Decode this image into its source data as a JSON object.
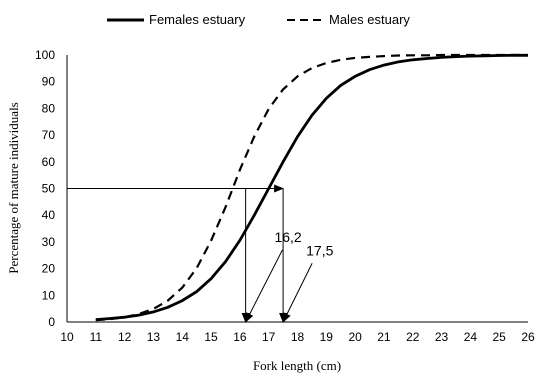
{
  "chart_data": {
    "type": "line",
    "xlabel": "Fork length  (cm)",
    "ylabel": "Percentage of mature individuals",
    "xlim": [
      10,
      26
    ],
    "ylim": [
      0,
      100
    ],
    "xticks": [
      "10",
      "11",
      "12",
      "13",
      "14",
      "15",
      "16",
      "17",
      "18",
      "19",
      "20",
      "21",
      "22",
      "23",
      "24",
      "25",
      "26"
    ],
    "yticks": [
      "0",
      "10",
      "20",
      "30",
      "40",
      "50",
      "60",
      "70",
      "80",
      "90",
      "100"
    ],
    "grid": false,
    "legend_position": "top",
    "series": [
      {
        "name": "Females  estuary",
        "style": "solid",
        "x": [
          11,
          11.5,
          12,
          12.5,
          13,
          13.5,
          14,
          14.5,
          15,
          15.5,
          16,
          16.5,
          17,
          17.5,
          18,
          18.5,
          19,
          19.5,
          20,
          20.5,
          21,
          21.5,
          22,
          22.5,
          23,
          23.5,
          24,
          24.5,
          25,
          25.5,
          26
        ],
        "y": [
          0.9,
          1.3,
          1.8,
          2.6,
          3.8,
          5.5,
          8.0,
          11.4,
          16.2,
          22.6,
          30.6,
          40.0,
          50.0,
          60.0,
          69.4,
          77.4,
          83.8,
          88.6,
          92.0,
          94.5,
          96.2,
          97.4,
          98.2,
          98.7,
          99.1,
          99.4,
          99.6,
          99.7,
          99.8,
          99.9,
          99.9
        ]
      },
      {
        "name": "Males estuary",
        "style": "dashed",
        "x": [
          11,
          11.5,
          12,
          12.5,
          13,
          13.5,
          14,
          14.5,
          15,
          15.5,
          16,
          16.5,
          17,
          17.5,
          18,
          18.5,
          19,
          19.5,
          20,
          20.5,
          21,
          21.5,
          22,
          22.5,
          23,
          23.5,
          24,
          24.5,
          25,
          25.5,
          26
        ],
        "y": [
          0.7,
          1.1,
          1.8,
          3.0,
          4.9,
          8.0,
          12.9,
          20.2,
          30.5,
          43.0,
          57.0,
          69.5,
          79.8,
          87.1,
          92.0,
          95.1,
          97.0,
          98.2,
          98.9,
          99.3,
          99.6,
          99.8,
          99.9,
          99.9,
          100.0,
          100.0,
          100.0,
          100.0,
          100.0,
          100.0,
          100.0
        ]
      }
    ],
    "annotations": {
      "reference_y": 50,
      "markers": [
        {
          "label": "16,2",
          "x": 16.2,
          "label_x": 17.2,
          "label_y": 30
        },
        {
          "label": "17,5",
          "x": 17.5,
          "label_x": 18.3,
          "label_y": 25
        }
      ]
    }
  }
}
